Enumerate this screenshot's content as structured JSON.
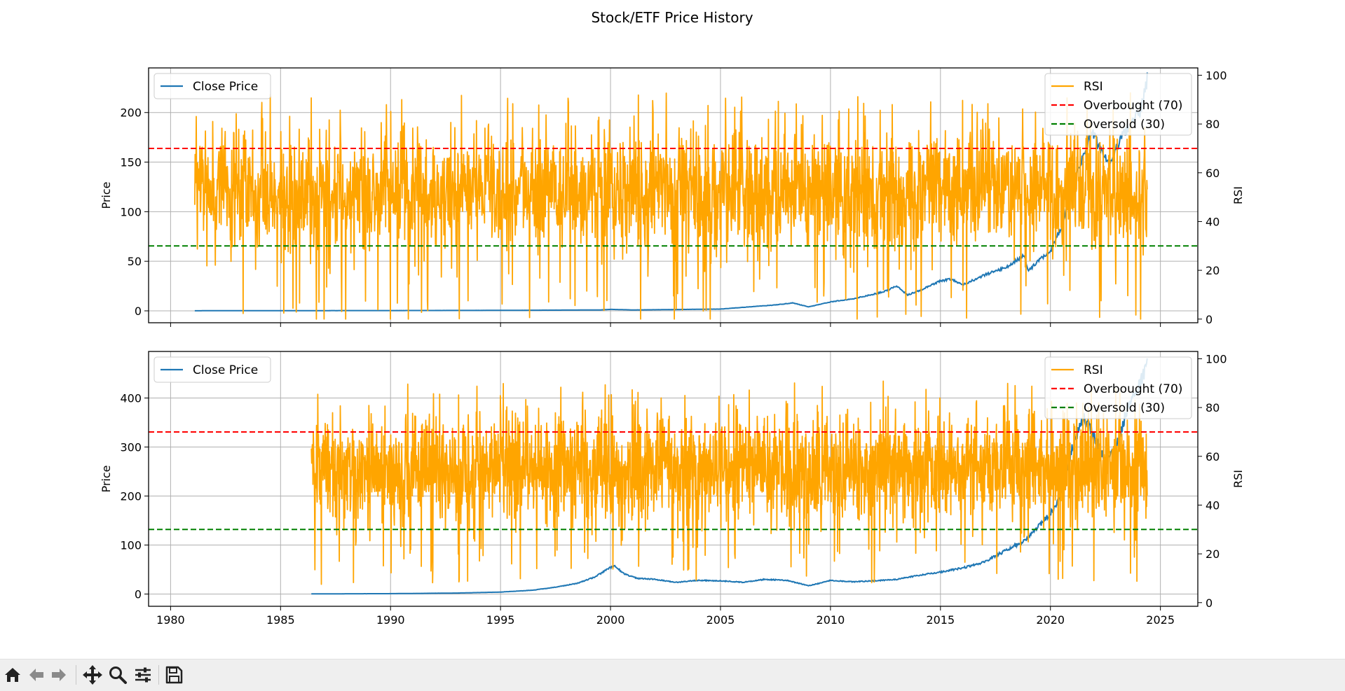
{
  "figure": {
    "title": "Stock/ETF Price History"
  },
  "chart_data": [
    {
      "type": "line",
      "title": "",
      "xlabel": "",
      "ylabel": "Price",
      "y2label": "RSI",
      "xlim": [
        1979,
        2026.7
      ],
      "ylim": [
        -12,
        245
      ],
      "y2lim": [
        -1.5,
        103
      ],
      "xticks": [
        1980,
        1985,
        1990,
        1995,
        2000,
        2005,
        2010,
        2015,
        2020,
        2025
      ],
      "yticks": [
        0,
        50,
        100,
        150,
        200
      ],
      "y2ticks": [
        0,
        20,
        40,
        60,
        80,
        100
      ],
      "grid": true,
      "show_xtick_labels": false,
      "legend_left": {
        "placement": "upper-left",
        "entries": [
          "Close Price"
        ]
      },
      "legend_right": {
        "placement": "upper-right",
        "entries": [
          "RSI",
          "Overbought (70)",
          "Oversold (30)"
        ]
      },
      "series": [
        {
          "name": "Close Price",
          "axis": "left",
          "color": "#1f77b4",
          "x": [
            1981.1,
            1985,
            1990,
            1995,
            1999.5,
            2000.0,
            2001,
            2005,
            2007.5,
            2008.3,
            2009.0,
            2010,
            2011,
            2012,
            2012.5,
            2013.0,
            2013.5,
            2014,
            2015,
            2015.5,
            2016,
            2017,
            2018,
            2018.8,
            2019,
            2019.5,
            2020.0,
            2020.5,
            2020.9,
            2021.4,
            2021.9,
            2022.3,
            2022.7,
            2023.2,
            2023.7,
            2024.1,
            2024.4
          ],
          "y": [
            0.1,
            0.2,
            0.3,
            0.5,
            0.9,
            1.5,
            0.9,
            1.8,
            6,
            8,
            4,
            9,
            12,
            17,
            20,
            25,
            16,
            20,
            30,
            32,
            26,
            36,
            44,
            56,
            40,
            52,
            60,
            85,
            120,
            150,
            180,
            160,
            145,
            175,
            190,
            200,
            235
          ]
        },
        {
          "name": "RSI",
          "axis": "right",
          "color": "#ffa500",
          "x_start": 1981.1,
          "x_end": 2024.4,
          "min": 0,
          "max": 98,
          "center": 52,
          "spread": 17
        }
      ],
      "hlines": [
        {
          "name": "Overbought (70)",
          "axis": "right",
          "y": 70,
          "color": "#ff0000",
          "style": "dashed"
        },
        {
          "name": "Oversold (30)",
          "axis": "right",
          "y": 30,
          "color": "#008000",
          "style": "dashed"
        }
      ]
    },
    {
      "type": "line",
      "title": "",
      "xlabel": "",
      "ylabel": "Price",
      "y2label": "RSI",
      "xlim": [
        1979,
        2026.7
      ],
      "ylim": [
        -25,
        495
      ],
      "y2lim": [
        -1.5,
        103
      ],
      "xticks": [
        1980,
        1985,
        1990,
        1995,
        2000,
        2005,
        2010,
        2015,
        2020,
        2025
      ],
      "yticks": [
        0,
        100,
        200,
        300,
        400
      ],
      "y2ticks": [
        0,
        20,
        40,
        60,
        80,
        100
      ],
      "grid": true,
      "show_xtick_labels": true,
      "legend_left": {
        "placement": "upper-left",
        "entries": [
          "Close Price"
        ]
      },
      "legend_right": {
        "placement": "upper-right",
        "entries": [
          "RSI",
          "Overbought (70)",
          "Oversold (30)"
        ]
      },
      "series": [
        {
          "name": "Close Price",
          "axis": "left",
          "color": "#1f77b4",
          "x": [
            1986.4,
            1990,
            1993,
            1995,
            1996.5,
            1997.5,
            1998.5,
            1999.3,
            1999.9,
            2000.2,
            2000.6,
            2001.2,
            2002,
            2003,
            2004,
            2005,
            2006,
            2007,
            2008,
            2009.0,
            2009.5,
            2010,
            2011,
            2012,
            2013,
            2014,
            2015,
            2016,
            2017,
            2018,
            2018.8,
            2019.5,
            2020.2,
            2020.6,
            2021.0,
            2021.5,
            2021.9,
            2022.5,
            2023.0,
            2023.5,
            2024.0,
            2024.4
          ],
          "y": [
            0.3,
            0.8,
            2,
            4,
            8,
            14,
            22,
            35,
            52,
            57,
            42,
            32,
            30,
            24,
            28,
            27,
            24,
            30,
            28,
            17,
            22,
            28,
            25,
            27,
            30,
            38,
            45,
            53,
            65,
            90,
            108,
            140,
            175,
            220,
            300,
            360,
            330,
            270,
            300,
            380,
            420,
            470
          ]
        },
        {
          "name": "RSI",
          "axis": "right",
          "color": "#ffa500",
          "x_start": 1986.4,
          "x_end": 2024.4,
          "min": 0,
          "max": 98,
          "center": 55,
          "spread": 15
        }
      ],
      "hlines": [
        {
          "name": "Overbought (70)",
          "axis": "right",
          "y": 70,
          "color": "#ff0000",
          "style": "dashed"
        },
        {
          "name": "Oversold (30)",
          "axis": "right",
          "y": 30,
          "color": "#008000",
          "style": "dashed"
        }
      ]
    }
  ],
  "toolbar": {
    "buttons": [
      "home-icon",
      "back-arrow-icon",
      "forward-arrow-icon",
      "pan-icon",
      "zoom-icon",
      "configure-subplots-icon",
      "save-icon"
    ]
  }
}
